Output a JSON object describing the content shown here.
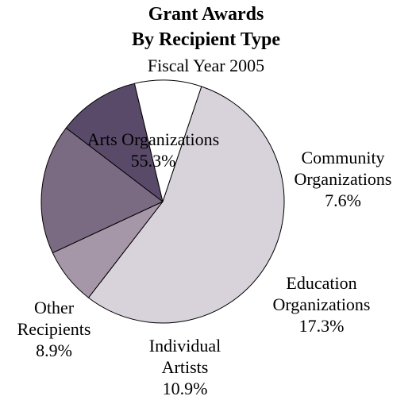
{
  "chart_data": {
    "type": "pie",
    "title": "Grant Awards",
    "title_line2": "By Recipient Type",
    "subtitle": "Fiscal Year 2005",
    "slices": [
      {
        "label_lines": [
          "Arts Organizations"
        ],
        "percent_label": "55.3%",
        "value": 55.3,
        "color": "#d8d2da"
      },
      {
        "label_lines": [
          "Community",
          "Organizations"
        ],
        "percent_label": "7.6%",
        "value": 7.6,
        "color": "#a697a8"
      },
      {
        "label_lines": [
          "Education",
          "Organizations"
        ],
        "percent_label": "17.3%",
        "value": 17.3,
        "color": "#7a6a82"
      },
      {
        "label_lines": [
          "Individual",
          "Artists"
        ],
        "percent_label": "10.9%",
        "value": 10.9,
        "color": "#5a4a6a"
      },
      {
        "label_lines": [
          "Other",
          "Recipients"
        ],
        "percent_label": "8.9%",
        "value": 8.9,
        "color": "#ffffff"
      }
    ],
    "legend": "none"
  }
}
